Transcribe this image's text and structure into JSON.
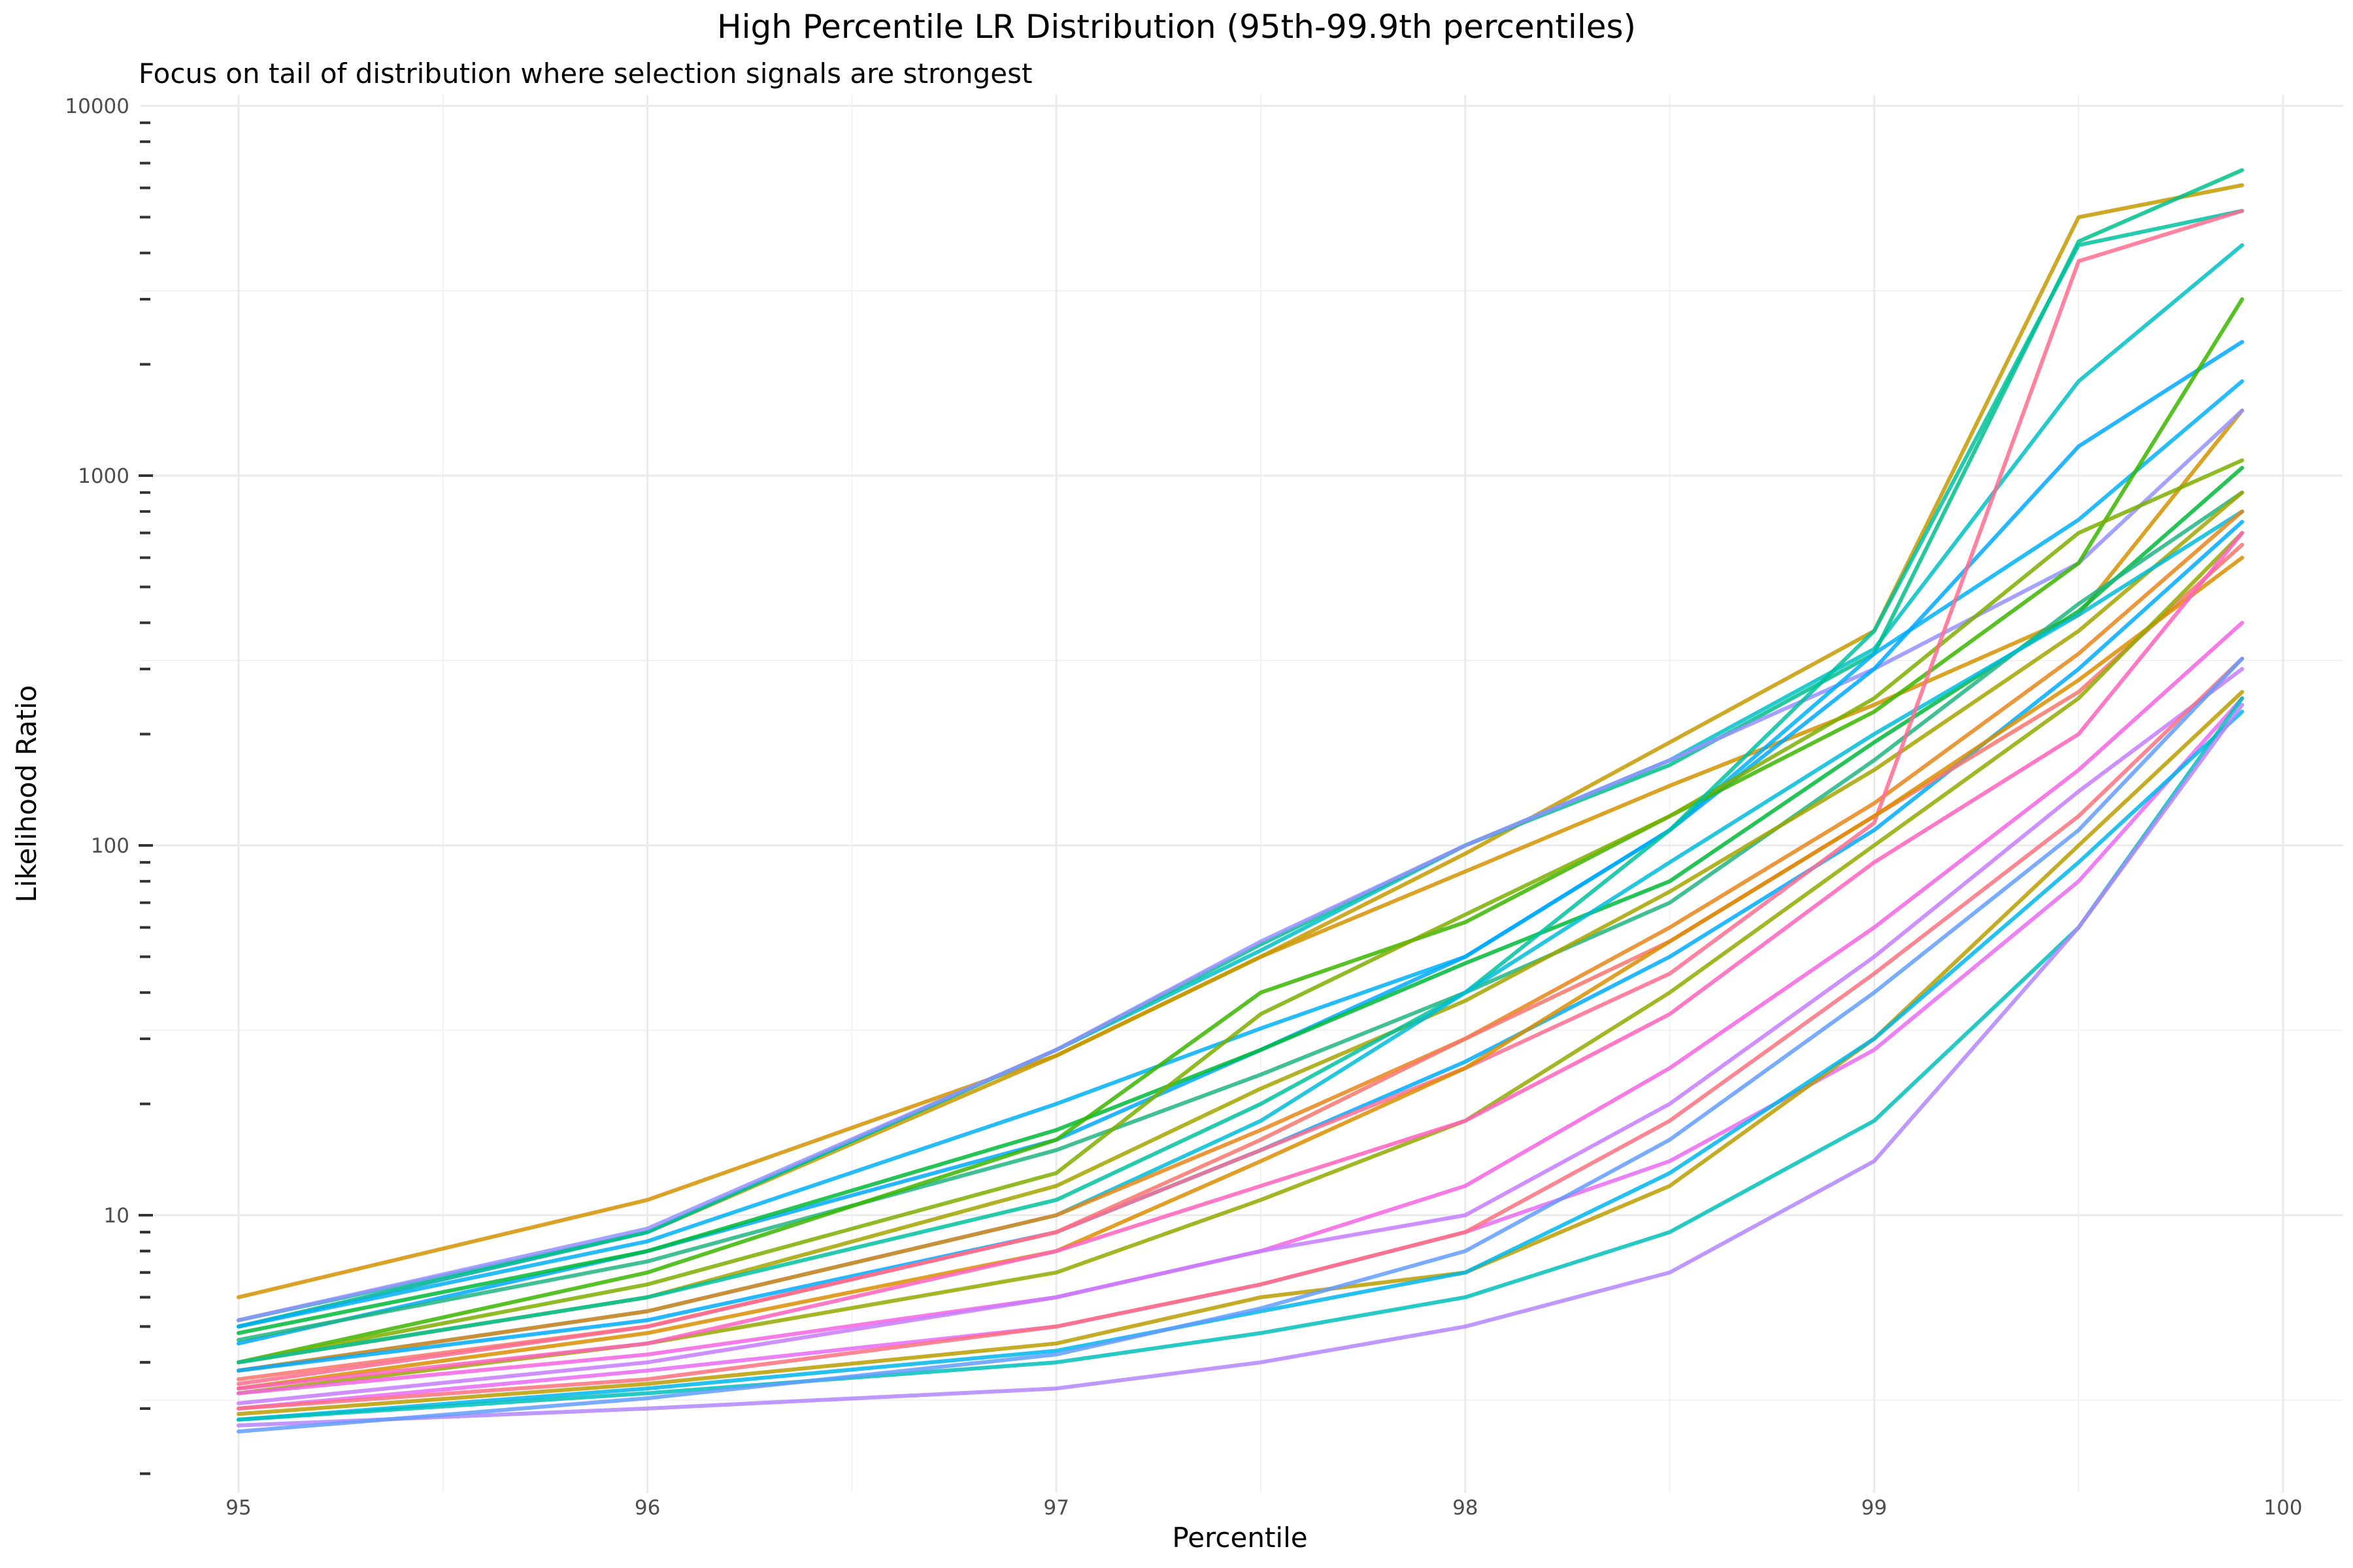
{
  "chart_data": {
    "type": "line",
    "title": "High Percentile LR Distribution (95th-99.9th percentiles)",
    "subtitle": "Focus on tail of distribution where selection signals are strongest",
    "xlabel": "Percentile",
    "ylabel": "Likelihood Ratio",
    "x_scale": "linear",
    "y_scale": "log10",
    "xlim": [
      94.98,
      100.0
    ],
    "ylim": [
      2,
      10000
    ],
    "x_ticks": [
      95,
      96,
      97,
      98,
      99,
      100
    ],
    "x_tick_labels": [
      "95",
      "96",
      "97",
      "98",
      "99",
      "100"
    ],
    "y_ticks": [
      10,
      100,
      1000,
      10000
    ],
    "y_tick_labels": [
      "10",
      "100",
      "1000",
      "10000"
    ],
    "grid": true,
    "legend": "none",
    "x": [
      95.0,
      96.0,
      97.0,
      97.5,
      98.0,
      98.5,
      99.0,
      99.5,
      99.9
    ],
    "series": [
      {
        "color": "#D39200",
        "values": [
          6.0,
          11.0,
          27.0,
          50.0,
          85.0,
          145.0,
          240.0,
          420.0,
          1500.0
        ]
      },
      {
        "color": "#C49A00",
        "values": [
          5.0,
          9.0,
          27.0,
          50.0,
          95.0,
          190.0,
          380.0,
          5000.0,
          6100.0
        ]
      },
      {
        "color": "#00BFC4",
        "values": [
          5.0,
          9.0,
          28.0,
          52.0,
          100.0,
          170.0,
          340.0,
          1800.0,
          4200.0
        ]
      },
      {
        "color": "#00C08B",
        "values": [
          5.2,
          9.0,
          28.0,
          54.0,
          100.0,
          165.0,
          330.0,
          4300.0,
          6700.0
        ]
      },
      {
        "color": "#9590FF",
        "values": [
          5.2,
          9.2,
          28.0,
          55.0,
          100.0,
          170.0,
          300.0,
          580.0,
          1500.0
        ]
      },
      {
        "color": "#00B0F6",
        "values": [
          5.0,
          8.5,
          20.0,
          32.0,
          50.0,
          110.0,
          330.0,
          760.0,
          1800.0
        ]
      },
      {
        "color": "#00A9FF",
        "values": [
          4.5,
          8.0,
          16.0,
          28.0,
          50.0,
          110.0,
          300.0,
          1200.0,
          2300.0
        ]
      },
      {
        "color": "#00BA38",
        "values": [
          4.8,
          8.0,
          17.0,
          28.0,
          48.0,
          80.0,
          190.0,
          430.0,
          1050.0
        ]
      },
      {
        "color": "#1FB580",
        "values": [
          4.6,
          7.5,
          15.0,
          24.0,
          40.0,
          70.0,
          170.0,
          450.0,
          900.0
        ]
      },
      {
        "color": "#39B600",
        "values": [
          4.0,
          7.0,
          16.0,
          40.0,
          62.0,
          120.0,
          230.0,
          580.0,
          3000.0
        ]
      },
      {
        "color": "#7CAE00",
        "values": [
          4.0,
          6.5,
          13.0,
          35.0,
          65.0,
          120.0,
          250.0,
          700.0,
          1100.0
        ]
      },
      {
        "color": "#A3A500",
        "values": [
          4.0,
          6.0,
          12.0,
          22.0,
          38.0,
          75.0,
          160.0,
          380.0,
          900.0
        ]
      },
      {
        "color": "#00C19F",
        "values": [
          4.0,
          6.0,
          11.0,
          20.0,
          40.0,
          110.0,
          380.0,
          4200.0,
          5200.0
        ]
      },
      {
        "color": "#00BCD8",
        "values": [
          3.8,
          5.5,
          10.0,
          18.0,
          40.0,
          90.0,
          200.0,
          420.0,
          800.0
        ]
      },
      {
        "color": "#E7861B",
        "values": [
          3.8,
          5.5,
          10.0,
          17.0,
          30.0,
          60.0,
          130.0,
          330.0,
          800.0
        ]
      },
      {
        "color": "#00ABFD",
        "values": [
          3.8,
          5.2,
          9.0,
          15.0,
          26.0,
          50.0,
          110.0,
          300.0,
          750.0
        ]
      },
      {
        "color": "#F8766D",
        "values": [
          3.6,
          5.0,
          9.0,
          16.0,
          30.0,
          55.0,
          120.0,
          260.0,
          650.0
        ]
      },
      {
        "color": "#FF6C91",
        "values": [
          3.5,
          5.0,
          9.0,
          15.0,
          25.0,
          45.0,
          115.0,
          3800.0,
          5200.0
        ]
      },
      {
        "color": "#DB8E00",
        "values": [
          3.4,
          4.8,
          8.0,
          14.0,
          25.0,
          55.0,
          120.0,
          280.0,
          600.0
        ]
      },
      {
        "color": "#93AA00",
        "values": [
          3.3,
          4.5,
          7.0,
          11.0,
          18.0,
          40.0,
          100.0,
          250.0,
          700.0
        ]
      },
      {
        "color": "#FF62BC",
        "values": [
          3.4,
          4.5,
          8.0,
          12.0,
          18.0,
          35.0,
          90.0,
          200.0,
          700.0
        ]
      },
      {
        "color": "#F564E3",
        "values": [
          3.3,
          4.2,
          6.0,
          8.0,
          12.0,
          25.0,
          60.0,
          160.0,
          400.0
        ]
      },
      {
        "color": "#C77CFF",
        "values": [
          3.1,
          4.0,
          6.0,
          8.0,
          10.0,
          20.0,
          50.0,
          140.0,
          300.0
        ]
      },
      {
        "color": "#E76BF3",
        "values": [
          3.0,
          3.8,
          5.0,
          6.5,
          9.0,
          14.0,
          28.0,
          80.0,
          250.0
        ]
      },
      {
        "color": "#FC717F",
        "values": [
          3.0,
          3.6,
          5.0,
          6.5,
          9.0,
          18.0,
          45.0,
          120.0,
          320.0
        ]
      },
      {
        "color": "#BB9D00",
        "values": [
          2.9,
          3.5,
          4.5,
          6.0,
          7.0,
          12.0,
          30.0,
          100.0,
          260.0
        ]
      },
      {
        "color": "#00B6EB",
        "values": [
          2.8,
          3.4,
          4.3,
          5.5,
          7.0,
          13.0,
          30.0,
          90.0,
          230.0
        ]
      },
      {
        "color": "#00C0B8",
        "values": [
          2.8,
          3.3,
          4.0,
          4.8,
          6.0,
          9.0,
          18.0,
          60.0,
          250.0
        ]
      },
      {
        "color": "#B385FF",
        "values": [
          2.7,
          3.0,
          3.4,
          4.0,
          5.0,
          7.0,
          14.0,
          60.0,
          240.0
        ]
      },
      {
        "color": "#619CFF",
        "values": [
          2.6,
          3.2,
          4.2,
          5.6,
          8.0,
          16.0,
          40.0,
          110.0,
          320.0
        ]
      }
    ]
  }
}
